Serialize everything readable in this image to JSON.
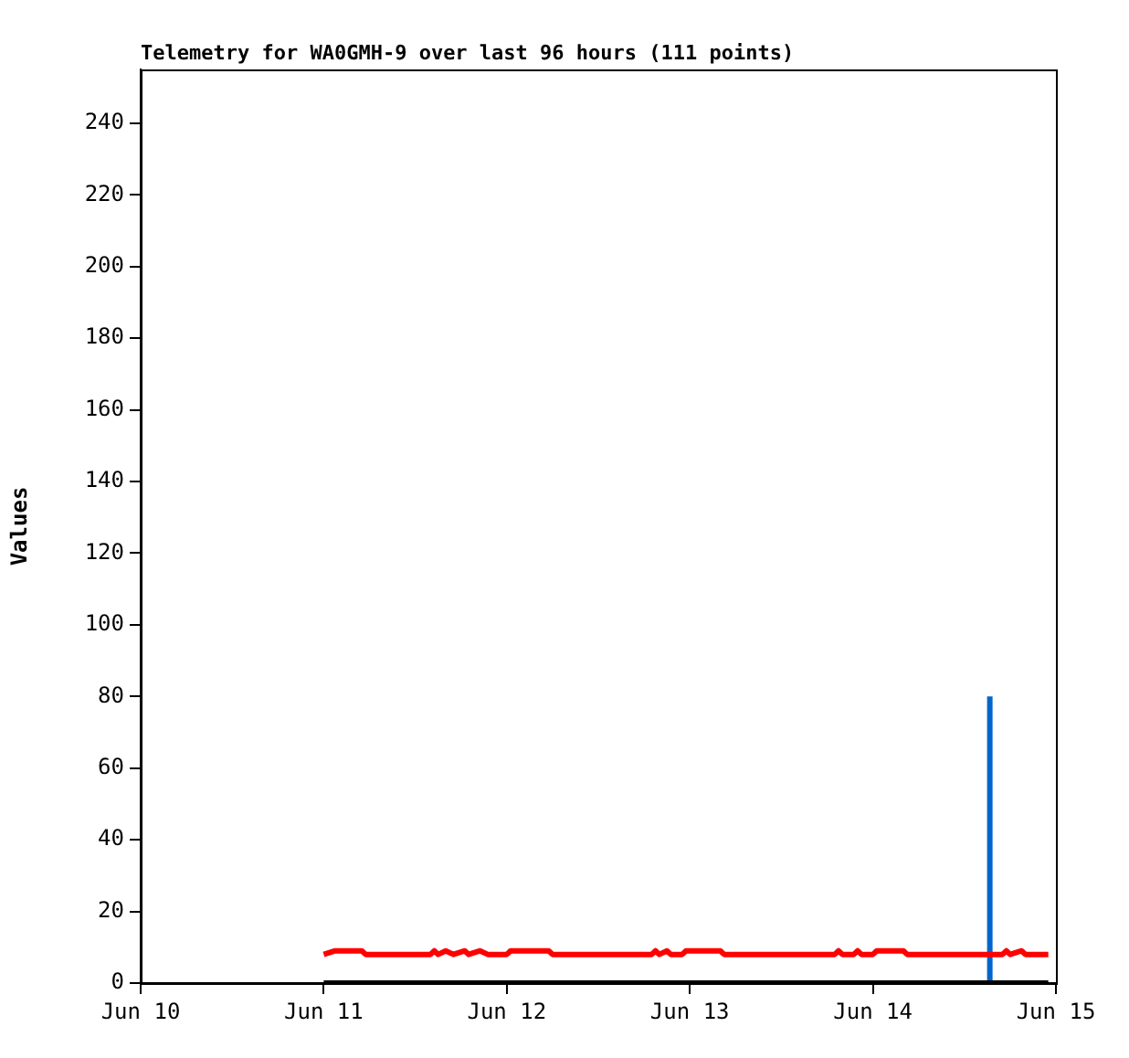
{
  "chart_data": {
    "type": "line",
    "title": "Telemetry for WA0GMH-9 over last 96 hours (111 points)",
    "ylabel": "Values",
    "xlim": [
      "--06-10",
      "--06-15"
    ],
    "xticks": [
      {
        "value": "--06-10",
        "label": "Jun 10"
      },
      {
        "value": "--06-11",
        "label": "Jun 11"
      },
      {
        "value": "--06-12",
        "label": "Jun 12"
      },
      {
        "value": "--06-13",
        "label": "Jun 13"
      },
      {
        "value": "--06-14",
        "label": "Jun 14"
      },
      {
        "value": "--06-15",
        "label": "Jun 15"
      }
    ],
    "ylim": [
      0,
      255
    ],
    "yticks": [
      0,
      20,
      40,
      60,
      80,
      100,
      120,
      140,
      160,
      180,
      200,
      220,
      240
    ],
    "grid": false,
    "legend": false,
    "marker": "none",
    "series": [
      {
        "color": "#000000",
        "x": [
          "--06-11T00:00",
          "--06-14T23:00"
        ],
        "values": [
          0,
          0
        ]
      },
      {
        "color": "#ff0000",
        "x": [
          "--06-11T00:00",
          "--06-11T01:30",
          "--06-11T05:00",
          "--06-11T05:30",
          "--06-11T14:00",
          "--06-11T14:30",
          "--06-11T15:00",
          "--06-11T16:00",
          "--06-11T17:00",
          "--06-11T18:30",
          "--06-11T19:00",
          "--06-11T20:30",
          "--06-11T21:30",
          "--06-12T00:00",
          "--06-12T00:30",
          "--06-12T05:30",
          "--06-12T06:00",
          "--06-12T19:00",
          "--06-12T19:30",
          "--06-12T20:00",
          "--06-12T21:00",
          "--06-12T21:30",
          "--06-12T23:00",
          "--06-12T23:30",
          "--06-13T04:00",
          "--06-13T04:30",
          "--06-13T19:00",
          "--06-13T19:30",
          "--06-13T20:00",
          "--06-13T21:30",
          "--06-13T22:00",
          "--06-13T22:30",
          "--06-14T00:00",
          "--06-14T00:30",
          "--06-14T04:00",
          "--06-14T04:30",
          "--06-14T17:00",
          "--06-14T17:30",
          "--06-14T18:00",
          "--06-14T19:30",
          "--06-14T20:00",
          "--06-14T23:00"
        ],
        "values": [
          8,
          9,
          9,
          8,
          8,
          9,
          8,
          9,
          8,
          9,
          8,
          9,
          8,
          8,
          9,
          9,
          8,
          8,
          9,
          8,
          9,
          8,
          8,
          9,
          9,
          8,
          8,
          9,
          8,
          8,
          9,
          8,
          8,
          9,
          9,
          8,
          8,
          9,
          8,
          9,
          8,
          8
        ]
      },
      {
        "color": "#0066cc",
        "x": [
          "--06-14T15:20",
          "--06-14T15:20"
        ],
        "values": [
          0,
          80
        ]
      }
    ]
  }
}
